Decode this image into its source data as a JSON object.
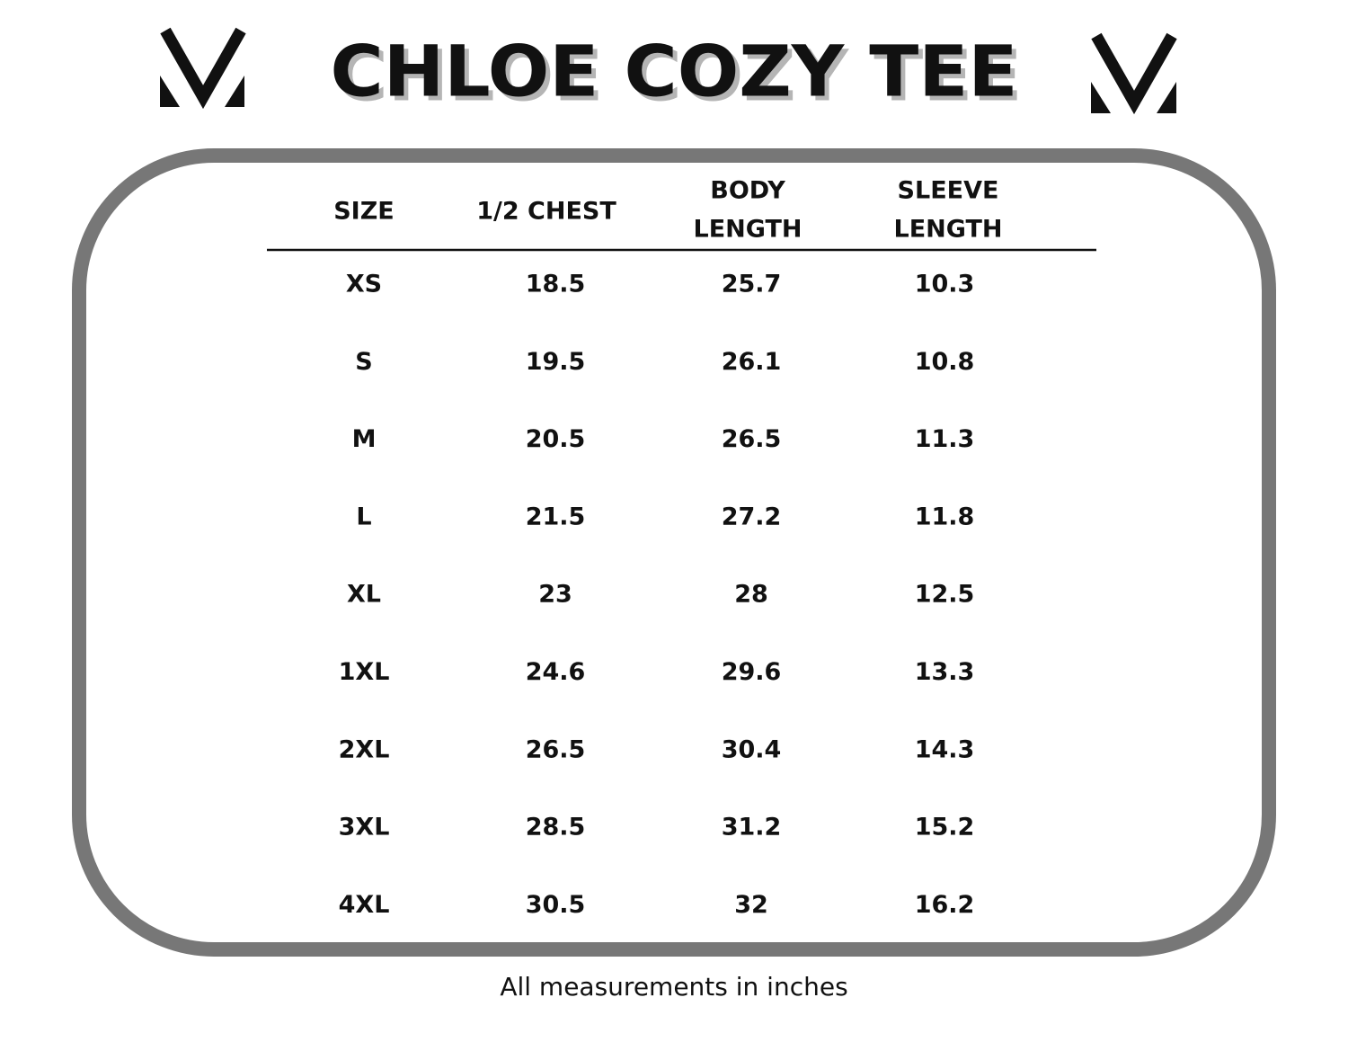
{
  "header": {
    "title": "CHLOE COZY TEE"
  },
  "table": {
    "columns": [
      [
        "SIZE"
      ],
      [
        "1/2 CHEST"
      ],
      [
        "BODY",
        "LENGTH"
      ],
      [
        "SLEEVE",
        "LENGTH"
      ]
    ],
    "rows": [
      [
        "XS",
        18.5,
        25.7,
        10.3
      ],
      [
        "S",
        19.5,
        26.1,
        10.8
      ],
      [
        "M",
        20.5,
        26.5,
        11.3
      ],
      [
        "L",
        21.5,
        27.2,
        11.8
      ],
      [
        "XL",
        23,
        28,
        12.5
      ],
      [
        "1XL",
        24.6,
        29.6,
        13.3
      ],
      [
        "2XL",
        26.5,
        30.4,
        14.3
      ],
      [
        "3XL",
        28.5,
        31.2,
        15.2
      ],
      [
        "4XL",
        30.5,
        32,
        16.2
      ]
    ]
  },
  "footer": {
    "note": "All measurements in inches"
  }
}
